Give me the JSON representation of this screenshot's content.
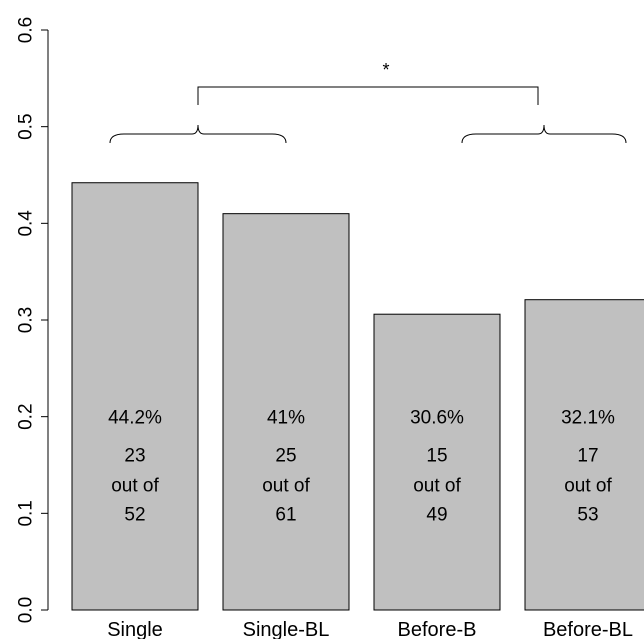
{
  "chart_data": {
    "type": "bar",
    "categories": [
      "Single",
      "Single-BL",
      "Before-B",
      "Before-BL"
    ],
    "values": [
      0.442,
      0.41,
      0.306,
      0.321
    ],
    "percent_labels": [
      "44.2%",
      "41%",
      "30.6%",
      "32.1%"
    ],
    "counts": [
      "23",
      "25",
      "15",
      "17"
    ],
    "count_connector": "out of",
    "totals": [
      "52",
      "61",
      "49",
      "53"
    ],
    "ylim": [
      0,
      0.6
    ],
    "yticks": [
      0.0,
      0.1,
      0.2,
      0.3,
      0.4,
      0.5,
      0.6
    ],
    "ytick_labels": [
      "0.0",
      "0.1",
      "0.2",
      "0.3",
      "0.4",
      "0.5",
      "0.6"
    ],
    "title": "",
    "xlabel": "",
    "ylabel": "",
    "significance_marker": "*",
    "bar_color": "#c0c0c0",
    "grid": false
  }
}
